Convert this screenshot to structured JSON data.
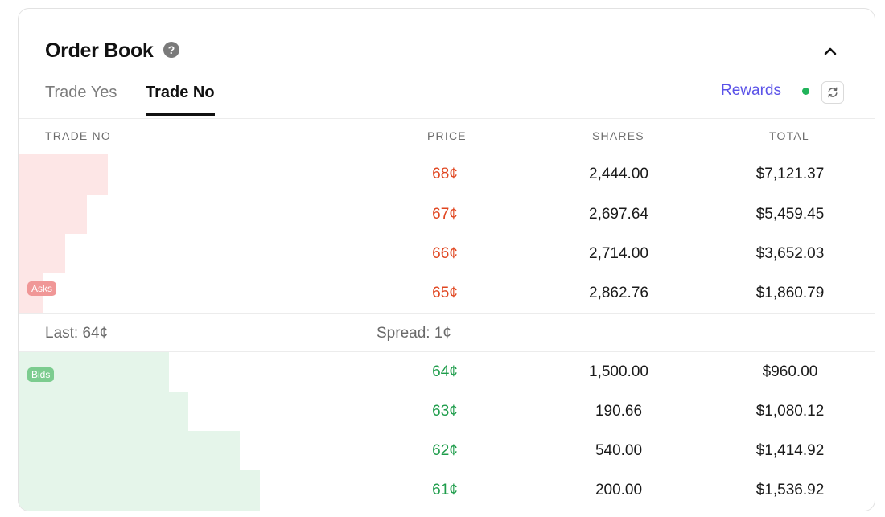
{
  "header": {
    "title": "Order Book",
    "help_glyph": "?",
    "help_icon": "help-circle-icon",
    "collapse_icon": "chevron-up-icon"
  },
  "tabs": [
    {
      "label": "Trade Yes",
      "active": false
    },
    {
      "label": "Trade No",
      "active": true
    }
  ],
  "rewards": {
    "label": "Rewards",
    "status_color": "#21b35a",
    "refresh_icon": "refresh-icon"
  },
  "columns": {
    "side": "TRADE NO",
    "price": "PRICE",
    "shares": "SHARES",
    "total": "TOTAL"
  },
  "asks_label": "Asks",
  "bids_label": "Bids",
  "asks": [
    {
      "price": "68¢",
      "shares": "2,444.00",
      "total": "$7,121.37"
    },
    {
      "price": "67¢",
      "shares": "2,697.64",
      "total": "$5,459.45"
    },
    {
      "price": "66¢",
      "shares": "2,714.00",
      "total": "$3,652.03"
    },
    {
      "price": "65¢",
      "shares": "2,862.76",
      "total": "$1,860.79"
    }
  ],
  "spread_row": {
    "last": "Last: 64¢",
    "spread": "Spread: 1¢"
  },
  "bids": [
    {
      "price": "64¢",
      "shares": "1,500.00",
      "total": "$960.00"
    },
    {
      "price": "63¢",
      "shares": "190.66",
      "total": "$1,080.12"
    },
    {
      "price": "62¢",
      "shares": "540.00",
      "total": "$1,414.92"
    },
    {
      "price": "61¢",
      "shares": "200.00",
      "total": "$1,536.92"
    }
  ],
  "colors": {
    "ask_price": "#e0451f",
    "bid_price": "#1d9c4a",
    "ask_depth": "#fde6e6",
    "bid_depth": "#e5f5ea",
    "rewards_text": "#5a52e8"
  }
}
